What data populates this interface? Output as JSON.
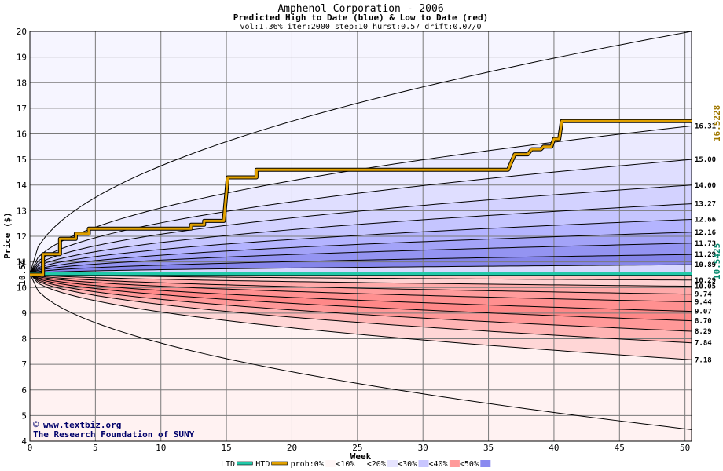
{
  "chart_data": {
    "type": "area",
    "title": "Amphenol Corporation - 2006",
    "subtitle": "Predicted High to Date (blue) &  Low to Date (red)",
    "params": "vol:1.36% iter:2000 step:10 hurst:0.57 drift:0.07/0",
    "xlabel": "Week",
    "ylabel": "Price ($)",
    "xlim": [
      0,
      50.5
    ],
    "ylim": [
      4,
      20
    ],
    "x_ticks": [
      0,
      5,
      10,
      15,
      20,
      25,
      30,
      35,
      40,
      45,
      50
    ],
    "y_ticks": [
      4,
      5,
      6,
      7,
      8,
      9,
      10,
      11,
      12,
      13,
      14,
      15,
      16,
      17,
      18,
      19,
      20
    ],
    "start_label": "10.54",
    "htd_label": "16.5228",
    "ltd_label": "10.5425",
    "credit_url": "www.textbiz.org",
    "credit_org": "The Research Foundation of SUNY",
    "high_curve_ends": [
      20.0,
      16.31,
      15.0,
      14.0,
      13.27,
      12.66,
      12.16,
      11.73,
      11.29,
      10.89
    ],
    "low_curve_ends": [
      10.29,
      10.05,
      9.74,
      9.44,
      9.07,
      8.7,
      8.29,
      7.84,
      7.18,
      4.45
    ],
    "high_labels": [
      "16.31",
      "15.00",
      "14.00",
      "13.27",
      "12.66",
      "12.16",
      "11.73",
      "11.29",
      "10.89"
    ],
    "low_labels": [
      "10.29",
      "10.05",
      "9.74",
      "9.44",
      "9.07",
      "8.70",
      "8.29",
      "7.84",
      "7.18"
    ],
    "htd_series": {
      "name": "HTD",
      "points": [
        [
          0,
          10.5
        ],
        [
          1,
          10.5
        ],
        [
          1,
          11.3
        ],
        [
          2.3,
          11.3
        ],
        [
          2.3,
          11.9
        ],
        [
          3.5,
          11.9
        ],
        [
          3.5,
          12.1
        ],
        [
          4.5,
          12.1
        ],
        [
          4.5,
          12.3
        ],
        [
          12.3,
          12.3
        ],
        [
          12.3,
          12.45
        ],
        [
          13.3,
          12.45
        ],
        [
          13.3,
          12.6
        ],
        [
          14.8,
          12.6
        ],
        [
          15.1,
          14.3
        ],
        [
          17.3,
          14.3
        ],
        [
          17.3,
          14.6
        ],
        [
          36.5,
          14.6
        ],
        [
          37,
          15.2
        ],
        [
          38,
          15.2
        ],
        [
          38.3,
          15.4
        ],
        [
          39,
          15.4
        ],
        [
          39.2,
          15.5
        ],
        [
          39.8,
          15.5
        ],
        [
          40,
          15.8
        ],
        [
          40.4,
          15.8
        ],
        [
          40.6,
          16.5
        ],
        [
          50.5,
          16.5
        ]
      ]
    },
    "ltd_series": {
      "name": "LTD",
      "value": 10.5425
    },
    "band_colors": {
      "high": [
        "#f6f5ff",
        "#ebeaff",
        "#dfdeff",
        "#d3d2ff",
        "#c5c5ff",
        "#b4b4ff",
        "#a3a3f8",
        "#9494f2",
        "#8585ea",
        "#d8d8ff"
      ],
      "low": [
        "#ffc5c5",
        "#ffd2d2",
        "#ffaaaa",
        "#ff9c9c",
        "#ff9090",
        "#ff8888",
        "#ff9898",
        "#ffb4b4",
        "#ffd6d6",
        "#fff2f2"
      ]
    },
    "legend": [
      {
        "label": "LTD",
        "swatch": "line",
        "color": "#22c8a8"
      },
      {
        "label": "HTD",
        "swatch": "line",
        "color": "#e0a000"
      },
      {
        "label": "prob:0%",
        "swatch": "box",
        "color": "#fff6f6"
      },
      {
        "label": "<10%",
        "swatch": "box",
        "color": "#ffffff"
      },
      {
        "label": "<20%",
        "swatch": "box",
        "color": "#e6e4ff"
      },
      {
        "label": "<30%",
        "swatch": "box",
        "color": "#c8c6ff"
      },
      {
        "label": "<40%",
        "swatch": "box",
        "color": "#ff9a9a"
      },
      {
        "label": "<50%",
        "swatch": "box",
        "color": "#8a8af0"
      }
    ],
    "legend_lead": "<",
    "grid": true
  }
}
